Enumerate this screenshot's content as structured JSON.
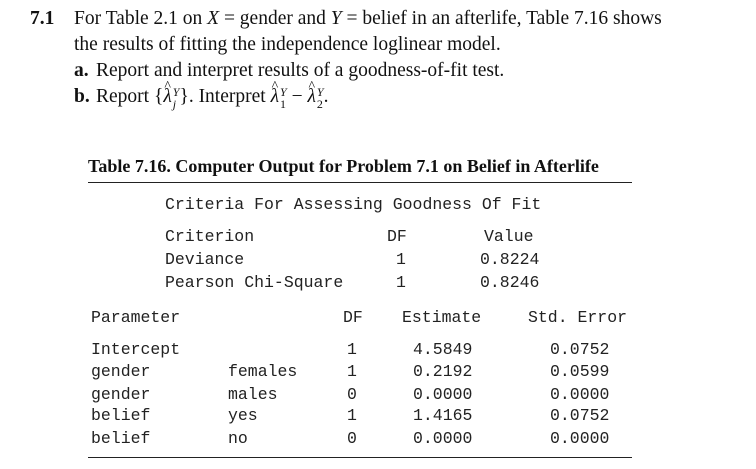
{
  "problem": {
    "number": "7.1",
    "intro_line1_a": "For Table 2.1 on ",
    "var_x": "X",
    "eq1": " = gender and ",
    "var_y": "Y",
    "eq2": " = belief in an afterlife, Table 7.16 shows",
    "intro_line2": "the results of fitting the independence loglinear model.",
    "part_a_label": "a.",
    "part_a_text": "Report and interpret results of a goodness-of-fit test.",
    "part_b_label": "b.",
    "part_b_report": "Report {",
    "lambda": "λ",
    "sup_y": "Y",
    "sub_j": "j",
    "sub_1": "1",
    "sub_2": "2",
    "part_b_close": "}. Interpret ",
    "minus": " − ",
    "period": "."
  },
  "table": {
    "caption": "Table 7.16. Computer Output for Problem 7.1 on Belief in Afterlife",
    "gof_title": "Criteria For Assessing Goodness Of Fit",
    "gof_headers": [
      "Criterion",
      "DF",
      "Value"
    ],
    "gof_rows": [
      {
        "criterion": "Deviance",
        "df": "1",
        "value": "0.8224"
      },
      {
        "criterion": "Pearson Chi-Square",
        "df": "1",
        "value": "0.8246"
      }
    ],
    "param_headers": [
      "Parameter",
      "DF",
      "Estimate",
      "Std. Error"
    ],
    "param_rows": [
      {
        "param": "Intercept",
        "level": "",
        "df": "1",
        "estimate": "4.5849",
        "se": "0.0752"
      },
      {
        "param": "gender",
        "level": "females",
        "df": "1",
        "estimate": "0.2192",
        "se": "0.0599"
      },
      {
        "param": "gender",
        "level": "males",
        "df": "0",
        "estimate": "0.0000",
        "se": "0.0000"
      },
      {
        "param": "belief",
        "level": "yes",
        "df": "1",
        "estimate": "1.4165",
        "se": "0.0752"
      },
      {
        "param": "belief",
        "level": "no",
        "df": "0",
        "estimate": "0.0000",
        "se": "0.0000"
      }
    ]
  }
}
